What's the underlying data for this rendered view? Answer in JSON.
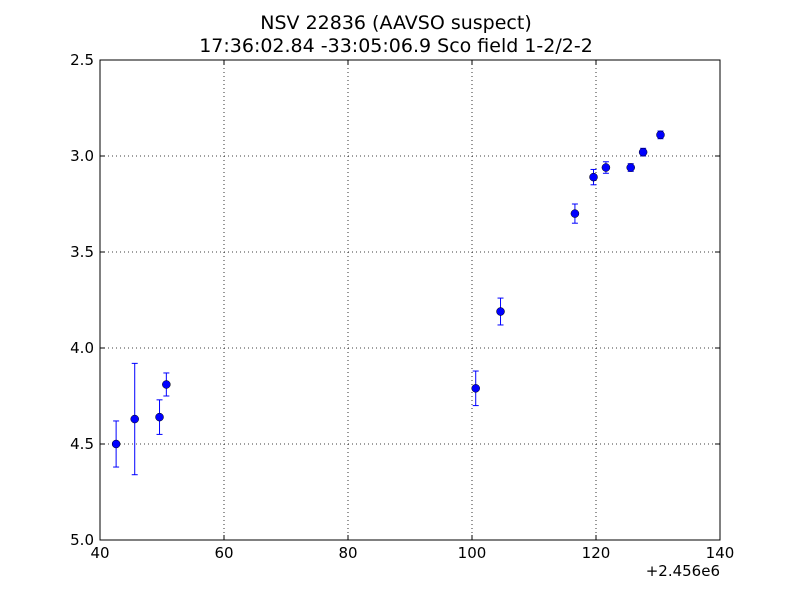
{
  "colors": {
    "marker": "#0000ff",
    "marker_edge": "#000000",
    "errorbar": "#0000ff",
    "grid": "#000000",
    "axes": "#000000",
    "background": "#ffffff"
  },
  "chart_data": {
    "type": "scatter",
    "title_line1": "NSV 22836  (AAVSO suspect)",
    "title_line2": "17:36:02.84 -33:05:06.9 Sco field 1-2/2-2",
    "xlabel": "",
    "ylabel": "",
    "x_offset_label": "+2.456e6",
    "xlim": [
      40,
      140
    ],
    "ylim": [
      2.5,
      5.0
    ],
    "y_inverted": true,
    "grid": true,
    "legend": "none",
    "x_ticks": [
      40,
      60,
      80,
      100,
      120,
      140
    ],
    "x_tick_labels": [
      "40",
      "60",
      "80",
      "100",
      "120",
      "140"
    ],
    "y_ticks": [
      2.5,
      3.0,
      3.5,
      4.0,
      4.5,
      5.0
    ],
    "y_tick_labels": [
      "2.5",
      "3.0",
      "3.5",
      "4.0",
      "4.5",
      "5.0"
    ],
    "series": [
      {
        "points": [
          {
            "x": 42.6,
            "y": 4.5,
            "err": 0.12
          },
          {
            "x": 45.6,
            "y": 4.37,
            "err": 0.29
          },
          {
            "x": 49.6,
            "y": 4.36,
            "err": 0.09
          },
          {
            "x": 50.7,
            "y": 4.19,
            "err": 0.06
          },
          {
            "x": 100.6,
            "y": 4.21,
            "err": 0.09
          },
          {
            "x": 104.6,
            "y": 3.81,
            "err": 0.07
          },
          {
            "x": 116.6,
            "y": 3.3,
            "err": 0.05
          },
          {
            "x": 119.6,
            "y": 3.11,
            "err": 0.04
          },
          {
            "x": 121.6,
            "y": 3.06,
            "err": 0.03
          },
          {
            "x": 125.6,
            "y": 3.06,
            "err": 0.02
          },
          {
            "x": 127.6,
            "y": 2.98,
            "err": 0.02
          },
          {
            "x": 130.4,
            "y": 2.89,
            "err": 0.02
          }
        ]
      }
    ]
  }
}
